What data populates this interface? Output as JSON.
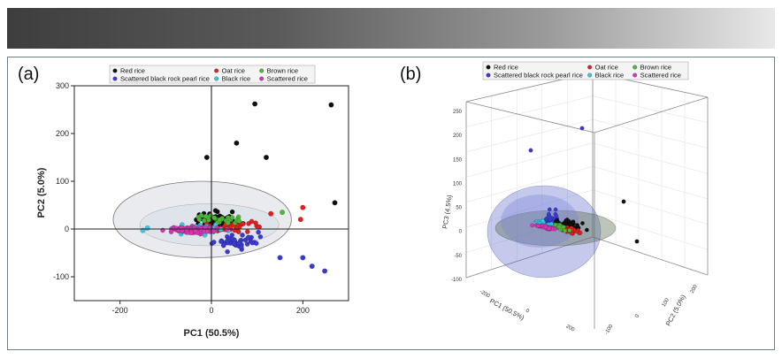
{
  "figure": {
    "panel_a_label": "(a)",
    "panel_b_label": "(b)"
  },
  "colors": {
    "red_rice": "#111111",
    "scattered_black_rock_pearl_rice": "#3a3ad0",
    "oat_rice": "#e02020",
    "black_rice": "#37c8e0",
    "brown_rice": "#4fb83a",
    "scattered_rice": "#d636b4"
  },
  "chart_data": [
    {
      "type": "scatter",
      "panel": "(a)",
      "title": "",
      "xlabel": "PC1 (50.5%)",
      "ylabel": "PC2 (5.0%)",
      "xlim": [
        -300,
        300
      ],
      "ylim": [
        -150,
        300
      ],
      "xticks": [
        "-200",
        "0",
        "200"
      ],
      "yticks": [
        "-100",
        "0",
        "100",
        "200",
        "300"
      ],
      "legend": [
        "Red rice",
        "Scattered black rock pearl rice",
        "Oat rice",
        "Black rice",
        "Brown rice",
        "Scattered rice"
      ],
      "legend_position": "top",
      "confidence_ellipse": {
        "center": [
          -20,
          20
        ],
        "radii": [
          195,
          80
        ]
      },
      "series": [
        {
          "name": "Red rice",
          "cluster": {
            "center": [
              15,
              35
            ],
            "spread": [
              90,
              45
            ],
            "n": 70
          },
          "outliers": [
            [
              95,
              262
            ],
            [
              262,
              260
            ],
            [
              55,
              180
            ],
            [
              270,
              55
            ],
            [
              -10,
              150
            ],
            [
              120,
              150
            ]
          ]
        },
        {
          "name": "Scattered black rock pearl rice",
          "cluster": {
            "center": [
              60,
              -25
            ],
            "spread": [
              95,
              30
            ],
            "n": 45
          },
          "outliers": [
            [
              220,
              -78
            ],
            [
              248,
              -88
            ],
            [
              150,
              -60
            ],
            [
              200,
              -60
            ]
          ]
        },
        {
          "name": "Oat rice",
          "cluster": {
            "center": [
              40,
              5
            ],
            "spread": [
              110,
              25
            ],
            "n": 40
          },
          "outliers": [
            [
              200,
              45
            ],
            [
              195,
              20
            ],
            [
              130,
              32
            ]
          ]
        },
        {
          "name": "Black rice",
          "cluster": {
            "center": [
              -30,
              0
            ],
            "spread": [
              110,
              18
            ],
            "n": 50
          },
          "outliers": [
            [
              -150,
              -3
            ],
            [
              -140,
              2
            ]
          ]
        },
        {
          "name": "Brown rice",
          "cluster": {
            "center": [
              20,
              20
            ],
            "spread": [
              90,
              20
            ],
            "n": 30
          },
          "outliers": [
            [
              155,
              35
            ]
          ]
        },
        {
          "name": "Scattered rice",
          "cluster": {
            "center": [
              -40,
              -2
            ],
            "spread": [
              100,
              12
            ],
            "n": 80
          },
          "outliers": []
        }
      ]
    },
    {
      "type": "scatter",
      "panel": "(b)",
      "title": "",
      "xlabel": "PC1 (50.5%)",
      "ylabel": "PC2 (5.0%)",
      "zlabel": "PC3 (4.5%)",
      "x_ticks": [
        "-200",
        "0",
        "200"
      ],
      "y_ticks": [
        "-100",
        "0",
        "100",
        "200"
      ],
      "z_ticks": [
        "-100",
        "-50",
        "0",
        "50",
        "100",
        "150",
        "200",
        "250"
      ],
      "legend": [
        "Red rice",
        "Scattered black rock pearl rice",
        "Oat rice",
        "Black rice",
        "Brown rice",
        "Scattered rice"
      ],
      "legend_position": "top",
      "series": [
        {
          "name": "Red rice",
          "cluster": {
            "center": [
              40,
              10,
              20
            ],
            "spread": [
              90,
              40,
              25
            ],
            "n": 70
          }
        },
        {
          "name": "Scattered black rock pearl rice",
          "cluster": {
            "center": [
              -20,
              0,
              40
            ],
            "spread": [
              60,
              30,
              70
            ],
            "n": 45
          }
        },
        {
          "name": "Oat rice",
          "cluster": {
            "center": [
              50,
              5,
              0
            ],
            "spread": [
              90,
              30,
              18
            ],
            "n": 35
          }
        },
        {
          "name": "Black rice",
          "cluster": {
            "center": [
              -60,
              0,
              5
            ],
            "spread": [
              80,
              25,
              20
            ],
            "n": 35
          }
        },
        {
          "name": "Brown rice",
          "cluster": {
            "center": [
              0,
              10,
              5
            ],
            "spread": [
              70,
              25,
              15
            ],
            "n": 25
          }
        },
        {
          "name": "Scattered rice",
          "cluster": {
            "center": [
              -40,
              -5,
              -5
            ],
            "spread": [
              90,
              20,
              12
            ],
            "n": 50
          }
        }
      ]
    }
  ]
}
